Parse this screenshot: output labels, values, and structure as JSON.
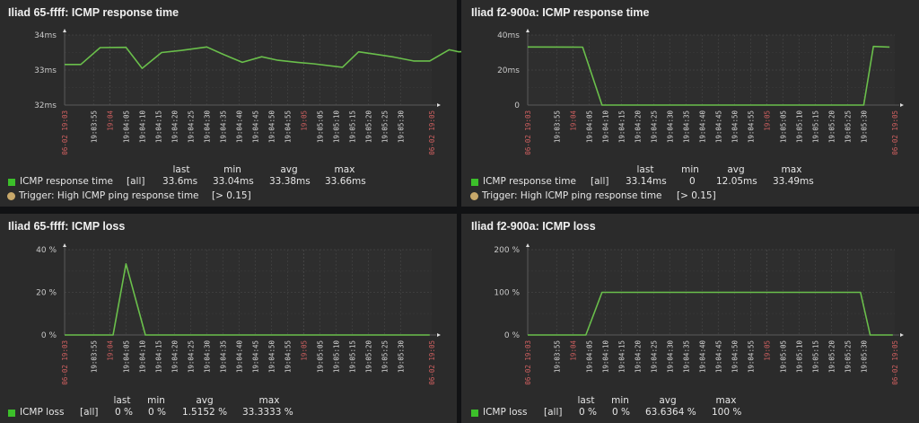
{
  "colors": {
    "series": "#6abf4b",
    "legend_square": "#3cbf2a",
    "trigger_dot": "#c8a86a",
    "major_tick": "#d06060"
  },
  "time_ticks": [
    "19:03:55",
    "19:04",
    "19:04:05",
    "19:04:10",
    "19:04:15",
    "19:04:20",
    "19:04:25",
    "19:04:30",
    "19:04:35",
    "19:04:40",
    "19:04:45",
    "19:04:50",
    "19:04:55",
    "19:05",
    "19:05:05",
    "19:05:10",
    "19:05:15",
    "19:05:20",
    "19:05:25",
    "19:05:30"
  ],
  "time_start_label": "06-02 19:03",
  "time_end_label": "06-02 19:05",
  "legend_headers": {
    "last": "last",
    "min": "min",
    "avg": "avg",
    "max": "max"
  },
  "chart_data": [
    {
      "type": "line",
      "title": "Iliad 65-ffff: ICMP response time",
      "xlabel": "",
      "ylabel": "",
      "yticks": [
        "32ms",
        "33ms",
        "34ms"
      ],
      "ylim": [
        32,
        34
      ],
      "x_unit": "seconds since 19:03:46",
      "series": [
        {
          "name": "ICMP response time",
          "x": [
            0,
            5,
            11,
            19,
            24,
            30,
            36,
            44,
            49,
            55,
            61,
            66,
            72,
            77,
            86,
            91,
            97,
            102,
            108,
            113,
            119,
            122,
            127,
            132,
            137,
            143
          ],
          "values": [
            33.16,
            33.16,
            33.64,
            33.65,
            33.05,
            33.5,
            33.56,
            33.66,
            33.45,
            33.22,
            33.38,
            33.28,
            33.22,
            33.18,
            33.08,
            33.52,
            33.44,
            33.37,
            33.26,
            33.26,
            33.58,
            33.52,
            33.55,
            33.6,
            33.6,
            33.6
          ]
        }
      ],
      "legend": {
        "series_label": "ICMP response time",
        "scope": "[all]",
        "last": "33.6ms",
        "min": "33.04ms",
        "avg": "33.38ms",
        "max": "33.66ms",
        "trigger_label": "Trigger: High ICMP ping response time",
        "trigger_value": "[> 0.15]"
      }
    },
    {
      "type": "line",
      "title": "Iliad f2-900a: ICMP response time",
      "xlabel": "",
      "ylabel": "",
      "yticks": [
        "0",
        "20ms",
        "40ms"
      ],
      "ylim": [
        0,
        40
      ],
      "x_unit": "seconds since 19:03:46",
      "series": [
        {
          "name": "ICMP response time",
          "x": [
            0,
            17,
            23,
            104,
            107,
            112
          ],
          "values": [
            33.2,
            33.1,
            0,
            0,
            33.5,
            33.14
          ]
        }
      ],
      "legend": {
        "series_label": "ICMP response time",
        "scope": "[all]",
        "last": "33.14ms",
        "min": "0",
        "avg": "12.05ms",
        "max": "33.49ms",
        "trigger_label": "Trigger: High ICMP ping response time",
        "trigger_value": "[> 0.15]"
      }
    },
    {
      "type": "line",
      "title": "Iliad 65-ffff: ICMP loss",
      "xlabel": "",
      "ylabel": "",
      "yticks": [
        "0 %",
        "20 %",
        "40 %"
      ],
      "ylim": [
        0,
        40
      ],
      "x_unit": "seconds since 19:03:46",
      "series": [
        {
          "name": "ICMP loss",
          "x": [
            0,
            15,
            19,
            25,
            113
          ],
          "values": [
            0,
            0,
            33.3333,
            0,
            0
          ]
        }
      ],
      "legend": {
        "series_label": "ICMP loss",
        "scope": "[all]",
        "last": "0 %",
        "min": "0 %",
        "avg": "1.5152 %",
        "max": "33.3333 %"
      }
    },
    {
      "type": "line",
      "title": "Iliad f2-900a: ICMP loss",
      "xlabel": "",
      "ylabel": "",
      "yticks": [
        "0 %",
        "100 %",
        "200 %"
      ],
      "ylim": [
        0,
        200
      ],
      "x_unit": "seconds since 19:03:46",
      "series": [
        {
          "name": "ICMP loss",
          "x": [
            0,
            18,
            23,
            103,
            106,
            113
          ],
          "values": [
            0,
            0,
            100,
            100,
            0,
            0
          ]
        }
      ],
      "legend": {
        "series_label": "ICMP loss",
        "scope": "[all]",
        "last": "0 %",
        "min": "0 %",
        "avg": "63.6364 %",
        "max": "100 %"
      }
    }
  ]
}
